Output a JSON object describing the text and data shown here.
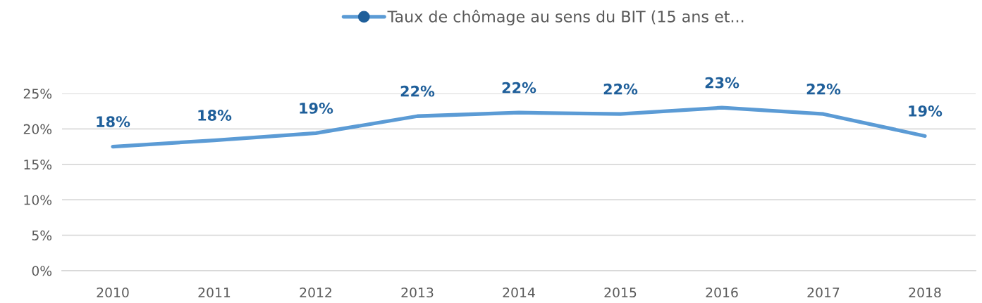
{
  "chart_data": {
    "type": "line",
    "categories": [
      "2010",
      "2011",
      "2012",
      "2013",
      "2014",
      "2015",
      "2016",
      "2017",
      "2018"
    ],
    "series": [
      {
        "name": "Taux de chômage au sens du BIT (15 ans et...",
        "color": "#5b9bd5",
        "values": [
          17.5,
          18.4,
          19.4,
          21.8,
          22.3,
          22.1,
          23.0,
          22.1,
          19.0
        ],
        "value_labels": [
          "18%",
          "18%",
          "19%",
          "22%",
          "22%",
          "22%",
          "23%",
          "22%",
          "19%"
        ]
      }
    ],
    "ylim": [
      0,
      25
    ],
    "yticks": [
      {
        "value": 0,
        "label": "0%"
      },
      {
        "value": 5,
        "label": "5%"
      },
      {
        "value": 10,
        "label": "10%"
      },
      {
        "value": 15,
        "label": "15%"
      },
      {
        "value": 20,
        "label": "20%"
      },
      {
        "value": 25,
        "label": "25%"
      }
    ],
    "grid": "y",
    "legend": "top",
    "line_style": "solid"
  }
}
